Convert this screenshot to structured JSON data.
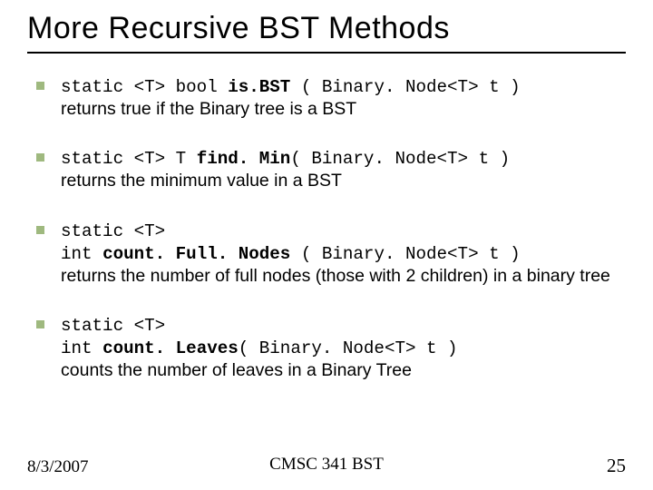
{
  "title": "More Recursive BST Methods",
  "items": [
    {
      "code_prefix": "static <T> bool ",
      "code_bold": "is.BST",
      "code_suffix": " ( Binary. Node<T> t )",
      "desc": "returns true if the Binary tree is a BST"
    },
    {
      "code_prefix": "static <T> T ",
      "code_bold": "find. Min",
      "code_suffix": "( Binary. Node<T> t )",
      "desc": "returns the minimum value in a BST"
    },
    {
      "code_line1": "static <T>",
      "code_prefix": "int ",
      "code_bold": "count. Full. Nodes",
      "code_suffix": " ( Binary. Node<T> t )",
      "desc": "returns the number of full nodes (those with 2 children) in a binary tree"
    },
    {
      "code_line1": "static <T>",
      "code_prefix": "int ",
      "code_bold": "count. Leaves",
      "code_suffix": "( Binary. Node<T> t )",
      "desc": "counts the number of leaves  in a Binary Tree"
    }
  ],
  "footer": {
    "date": "8/3/2007",
    "course": "CMSC 341 BST",
    "page": "25"
  },
  "colors": {
    "bullet": "#9fb97f",
    "text": "#000000",
    "bg": "#ffffff"
  }
}
